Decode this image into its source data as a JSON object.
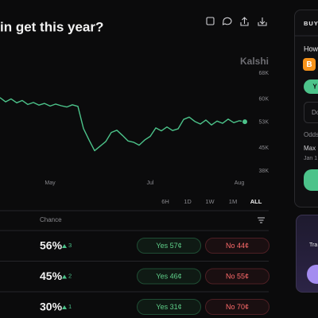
{
  "header": {
    "title": "in get this year?"
  },
  "chart_data": {
    "type": "line",
    "watermark": "Kalshi",
    "categories": [
      null,
      null,
      null,
      null,
      null,
      null,
      null,
      null,
      null,
      "May",
      null,
      null,
      null,
      null,
      null,
      null,
      null,
      null,
      null,
      null,
      null,
      null,
      null,
      null,
      null,
      null,
      null,
      "Jul",
      null,
      null,
      null,
      null,
      null,
      null,
      null,
      null,
      null,
      null,
      null,
      null,
      null,
      null,
      null,
      "Aug",
      null
    ],
    "series": [
      {
        "name": "Bitcoin",
        "color": "#4cc38a",
        "values": [
          60500,
          59200,
          60100,
          58900,
          59600,
          58400,
          59000,
          58200,
          58700,
          57900,
          58500,
          58000,
          57600,
          58300,
          57800,
          51000,
          47500,
          44200,
          45600,
          47000,
          49800,
          50500,
          48900,
          47200,
          46800,
          45900,
          47500,
          48600,
          51200,
          50300,
          51500,
          50400,
          50900,
          53800,
          54500,
          53200,
          52400,
          53600,
          52100,
          53300,
          52600,
          53900,
          52800,
          53400,
          53100
        ]
      }
    ],
    "ylim": [
      38000,
      68000
    ],
    "yticks": [
      {
        "value": 68000,
        "label": "68K"
      },
      {
        "value": 60000,
        "label": "60K"
      },
      {
        "value": 53000,
        "label": "53K"
      },
      {
        "value": 45000,
        "label": "45K"
      },
      {
        "value": 38000,
        "label": "38K"
      }
    ]
  },
  "ranges": [
    "6H",
    "1D",
    "1W",
    "1M",
    "ALL"
  ],
  "table": {
    "header": "Chance",
    "rows": [
      {
        "chance": "56%",
        "change": "3",
        "yes": "Yes 57¢",
        "no": "No 44¢"
      },
      {
        "chance": "45%",
        "change": "2",
        "yes": "Yes 46¢",
        "no": "No 55¢"
      },
      {
        "chance": "30%",
        "change": "1",
        "yes": "Yes 31¢",
        "no": "No 70¢"
      }
    ]
  },
  "side_panel": {
    "tab": "BUY",
    "question": "How",
    "coin_icon": "B",
    "pill": "Y",
    "input": "Do",
    "odds": "Odds",
    "max": "Max",
    "date": "Jan 1"
  },
  "promo": {
    "text": "Tra"
  }
}
